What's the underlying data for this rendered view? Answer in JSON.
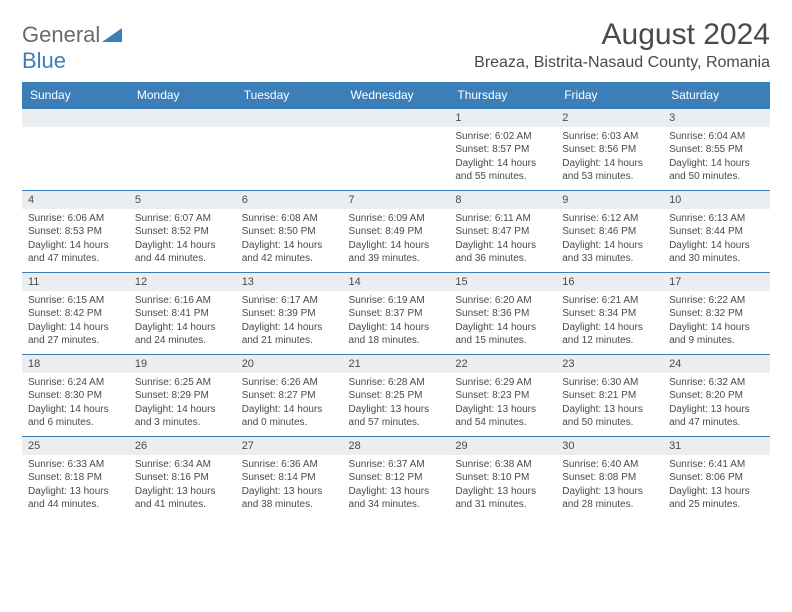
{
  "logo": {
    "text1": "General",
    "text2": "Blue"
  },
  "title": "August 2024",
  "location": "Breaza, Bistrita-Nasaud County, Romania",
  "colors": {
    "brand": "#3c7fb8",
    "headerText": "#ffffff",
    "bodyText": "#4a4a4a",
    "dateRowBg": "#eaeef1"
  },
  "days": [
    "Sunday",
    "Monday",
    "Tuesday",
    "Wednesday",
    "Thursday",
    "Friday",
    "Saturday"
  ],
  "weeks": [
    [
      null,
      null,
      null,
      null,
      {
        "d": "1",
        "sr": "6:02 AM",
        "ss": "8:57 PM",
        "dl": "14 hours and 55 minutes."
      },
      {
        "d": "2",
        "sr": "6:03 AM",
        "ss": "8:56 PM",
        "dl": "14 hours and 53 minutes."
      },
      {
        "d": "3",
        "sr": "6:04 AM",
        "ss": "8:55 PM",
        "dl": "14 hours and 50 minutes."
      }
    ],
    [
      {
        "d": "4",
        "sr": "6:06 AM",
        "ss": "8:53 PM",
        "dl": "14 hours and 47 minutes."
      },
      {
        "d": "5",
        "sr": "6:07 AM",
        "ss": "8:52 PM",
        "dl": "14 hours and 44 minutes."
      },
      {
        "d": "6",
        "sr": "6:08 AM",
        "ss": "8:50 PM",
        "dl": "14 hours and 42 minutes."
      },
      {
        "d": "7",
        "sr": "6:09 AM",
        "ss": "8:49 PM",
        "dl": "14 hours and 39 minutes."
      },
      {
        "d": "8",
        "sr": "6:11 AM",
        "ss": "8:47 PM",
        "dl": "14 hours and 36 minutes."
      },
      {
        "d": "9",
        "sr": "6:12 AM",
        "ss": "8:46 PM",
        "dl": "14 hours and 33 minutes."
      },
      {
        "d": "10",
        "sr": "6:13 AM",
        "ss": "8:44 PM",
        "dl": "14 hours and 30 minutes."
      }
    ],
    [
      {
        "d": "11",
        "sr": "6:15 AM",
        "ss": "8:42 PM",
        "dl": "14 hours and 27 minutes."
      },
      {
        "d": "12",
        "sr": "6:16 AM",
        "ss": "8:41 PM",
        "dl": "14 hours and 24 minutes."
      },
      {
        "d": "13",
        "sr": "6:17 AM",
        "ss": "8:39 PM",
        "dl": "14 hours and 21 minutes."
      },
      {
        "d": "14",
        "sr": "6:19 AM",
        "ss": "8:37 PM",
        "dl": "14 hours and 18 minutes."
      },
      {
        "d": "15",
        "sr": "6:20 AM",
        "ss": "8:36 PM",
        "dl": "14 hours and 15 minutes."
      },
      {
        "d": "16",
        "sr": "6:21 AM",
        "ss": "8:34 PM",
        "dl": "14 hours and 12 minutes."
      },
      {
        "d": "17",
        "sr": "6:22 AM",
        "ss": "8:32 PM",
        "dl": "14 hours and 9 minutes."
      }
    ],
    [
      {
        "d": "18",
        "sr": "6:24 AM",
        "ss": "8:30 PM",
        "dl": "14 hours and 6 minutes."
      },
      {
        "d": "19",
        "sr": "6:25 AM",
        "ss": "8:29 PM",
        "dl": "14 hours and 3 minutes."
      },
      {
        "d": "20",
        "sr": "6:26 AM",
        "ss": "8:27 PM",
        "dl": "14 hours and 0 minutes."
      },
      {
        "d": "21",
        "sr": "6:28 AM",
        "ss": "8:25 PM",
        "dl": "13 hours and 57 minutes."
      },
      {
        "d": "22",
        "sr": "6:29 AM",
        "ss": "8:23 PM",
        "dl": "13 hours and 54 minutes."
      },
      {
        "d": "23",
        "sr": "6:30 AM",
        "ss": "8:21 PM",
        "dl": "13 hours and 50 minutes."
      },
      {
        "d": "24",
        "sr": "6:32 AM",
        "ss": "8:20 PM",
        "dl": "13 hours and 47 minutes."
      }
    ],
    [
      {
        "d": "25",
        "sr": "6:33 AM",
        "ss": "8:18 PM",
        "dl": "13 hours and 44 minutes."
      },
      {
        "d": "26",
        "sr": "6:34 AM",
        "ss": "8:16 PM",
        "dl": "13 hours and 41 minutes."
      },
      {
        "d": "27",
        "sr": "6:36 AM",
        "ss": "8:14 PM",
        "dl": "13 hours and 38 minutes."
      },
      {
        "d": "28",
        "sr": "6:37 AM",
        "ss": "8:12 PM",
        "dl": "13 hours and 34 minutes."
      },
      {
        "d": "29",
        "sr": "6:38 AM",
        "ss": "8:10 PM",
        "dl": "13 hours and 31 minutes."
      },
      {
        "d": "30",
        "sr": "6:40 AM",
        "ss": "8:08 PM",
        "dl": "13 hours and 28 minutes."
      },
      {
        "d": "31",
        "sr": "6:41 AM",
        "ss": "8:06 PM",
        "dl": "13 hours and 25 minutes."
      }
    ]
  ],
  "labels": {
    "sunrise": "Sunrise:",
    "sunset": "Sunset:",
    "daylight": "Daylight:"
  }
}
